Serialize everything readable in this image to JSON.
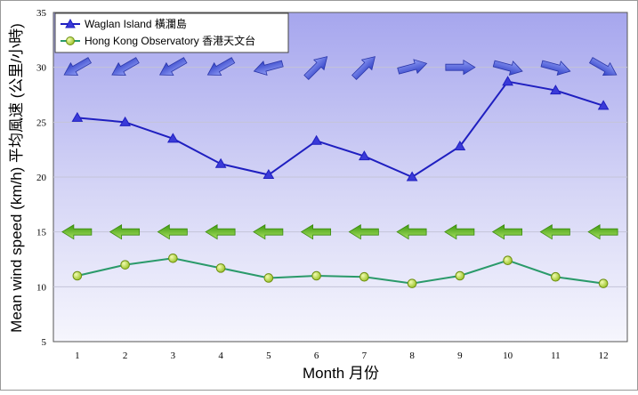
{
  "chart_data": {
    "type": "line",
    "title": "",
    "xlabel": "Month 月份",
    "ylabel": "Mean wind speed (km/h) 平均風速 (公里/小時)",
    "categories": [
      "1",
      "2",
      "3",
      "4",
      "5",
      "6",
      "7",
      "8",
      "9",
      "10",
      "11",
      "12"
    ],
    "ylim": [
      5,
      35
    ],
    "yticks": [
      5,
      10,
      15,
      20,
      25,
      30,
      35
    ],
    "grid": true,
    "legend_position": "top-left",
    "series": [
      {
        "name": "Waglan Island 橫瀾島",
        "marker": "triangle",
        "color": "#1f1fc0",
        "values": [
          25.4,
          25.0,
          23.5,
          21.2,
          20.2,
          23.3,
          21.9,
          20.0,
          22.8,
          28.7,
          27.9,
          26.5
        ],
        "wind_direction_arrows": {
          "level": 30,
          "color": "#4a5ad8",
          "directions_deg": [
            60,
            60,
            60,
            60,
            75,
            225,
            225,
            255,
            270,
            285,
            285,
            300
          ]
        }
      },
      {
        "name": "Hong Kong Observatory 香港天文台",
        "marker": "circle",
        "color": "#2a9a6a",
        "values": [
          11.0,
          12.0,
          12.6,
          11.7,
          10.8,
          11.0,
          10.9,
          10.3,
          11.0,
          12.4,
          10.9,
          10.3
        ],
        "wind_direction_arrows": {
          "level": 15,
          "color": "#55b21f",
          "directions_deg": [
            90,
            90,
            90,
            90,
            90,
            90,
            90,
            90,
            90,
            90,
            90,
            90
          ]
        }
      }
    ]
  }
}
